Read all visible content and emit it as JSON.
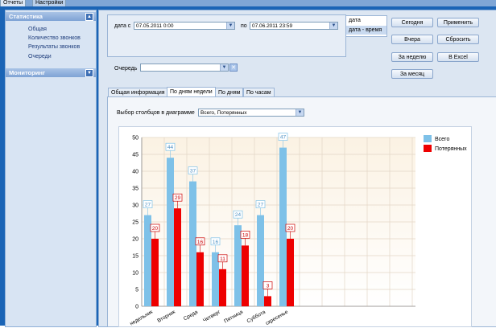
{
  "top_tabs": [
    "Отчеты",
    "Настройки"
  ],
  "sidebar": {
    "sections": [
      {
        "title": "Статистика",
        "items": [
          "Общая",
          "Количество звонков",
          "Результаты звонков",
          "Очереди"
        ]
      },
      {
        "title": "Мониторинг",
        "items": []
      }
    ],
    "collapse_icon": "chevron-up-icon"
  },
  "filters": {
    "date_from_label": "дата с",
    "date_from_value": "07.05.2011 0:00",
    "date_to_label": "по",
    "date_to_value": "07.06.2011 23:59",
    "mode_options": [
      "дата",
      "дата - время"
    ],
    "selected_mode": "дата - время",
    "queue_label": "Очередь",
    "queue_value": ""
  },
  "buttons": {
    "today": "Сегодня",
    "apply": "Применить",
    "yesterday": "Вчера",
    "reset": "Сбросить",
    "week": "За неделю",
    "excel": "В Excel",
    "month": "За месяц"
  },
  "tabs": [
    "Общая информация",
    "По дням недели",
    "По дням",
    "По часам"
  ],
  "active_tab": "По дням недели",
  "columns_label": "Выбор столбцов в диаграмме",
  "columns_value": "Всего, Потерянных",
  "colors": {
    "total": "#7ec1e8",
    "lost": "#ee0000",
    "total_label_border": "#7ec1e8",
    "lost_label_border": "#cc0000"
  },
  "chart_data": {
    "type": "bar",
    "categories": [
      "Понедельник",
      "Вторник",
      "Среда",
      "Четверг",
      "Пятница",
      "Суббота",
      "Воскресенье"
    ],
    "category_labels_visible": [
      "недельник",
      "Вторник",
      "Среда",
      "Четверг",
      "Пятница",
      "Суббота",
      "скресенье"
    ],
    "series": [
      {
        "name": "Всего",
        "values": [
          27,
          44,
          37,
          16,
          24,
          27,
          47
        ]
      },
      {
        "name": "Потерянных",
        "values": [
          20,
          29,
          16,
          11,
          18,
          3,
          20
        ]
      }
    ],
    "ylim": [
      0,
      50
    ],
    "yticks": [
      0,
      5,
      10,
      15,
      20,
      25,
      30,
      35,
      40,
      45,
      50
    ],
    "grid": true,
    "legend": "top-right"
  }
}
